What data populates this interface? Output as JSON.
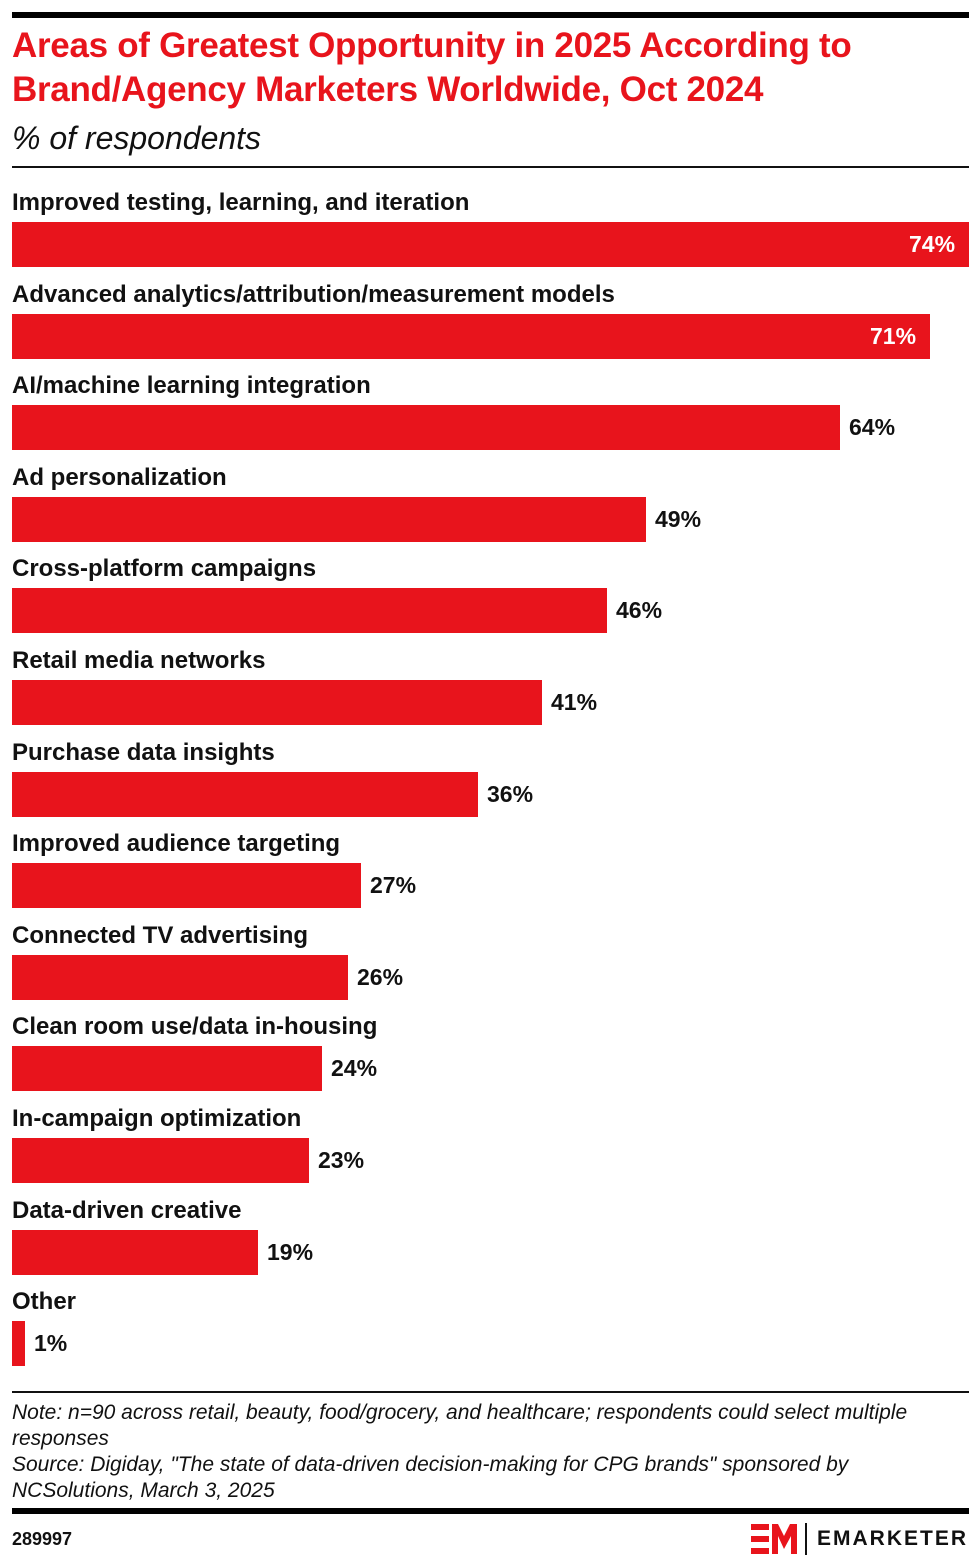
{
  "title": "Areas of Greatest Opportunity in 2025 According to Brand/Agency Marketers Worldwide, Oct 2024",
  "subtitle": "% of respondents",
  "colors": {
    "bar": "#e8141c",
    "title": "#e8141c",
    "text": "#111111"
  },
  "chart_data": {
    "type": "bar",
    "orientation": "horizontal",
    "title": "Areas of Greatest Opportunity in 2025 According to Brand/Agency Marketers Worldwide, Oct 2024",
    "subtitle": "% of respondents",
    "xlabel": "",
    "ylabel": "",
    "xlim": [
      0,
      74
    ],
    "grid": false,
    "legend": "none",
    "categories": [
      "Improved testing, learning, and iteration",
      "Advanced analytics/attribution/measurement models",
      "AI/machine learning integration",
      "Ad personalization",
      "Cross-platform campaigns",
      "Retail media networks",
      "Purchase data insights",
      "Improved audience targeting",
      "Connected TV advertising",
      "Clean room use/data in-housing",
      "In-campaign optimization",
      "Data-driven creative",
      "Other"
    ],
    "values": [
      74,
      71,
      64,
      49,
      46,
      41,
      36,
      27,
      26,
      24,
      23,
      19,
      1
    ],
    "value_labels": [
      "74%",
      "71%",
      "64%",
      "49%",
      "46%",
      "41%",
      "36%",
      "27%",
      "26%",
      "24%",
      "23%",
      "19%",
      "1%"
    ]
  },
  "footer": {
    "note": "Note: n=90 across retail, beauty, food/grocery, and healthcare; respondents could select multiple responses",
    "source": "Source: Digiday, \"The state of data-driven decision-making for CPG brands\" sponsored by NCSolutions, March 3, 2025",
    "chart_id": "289997",
    "brand_name": "EMARKETER",
    "brand_icon": "em-logo-icon"
  }
}
